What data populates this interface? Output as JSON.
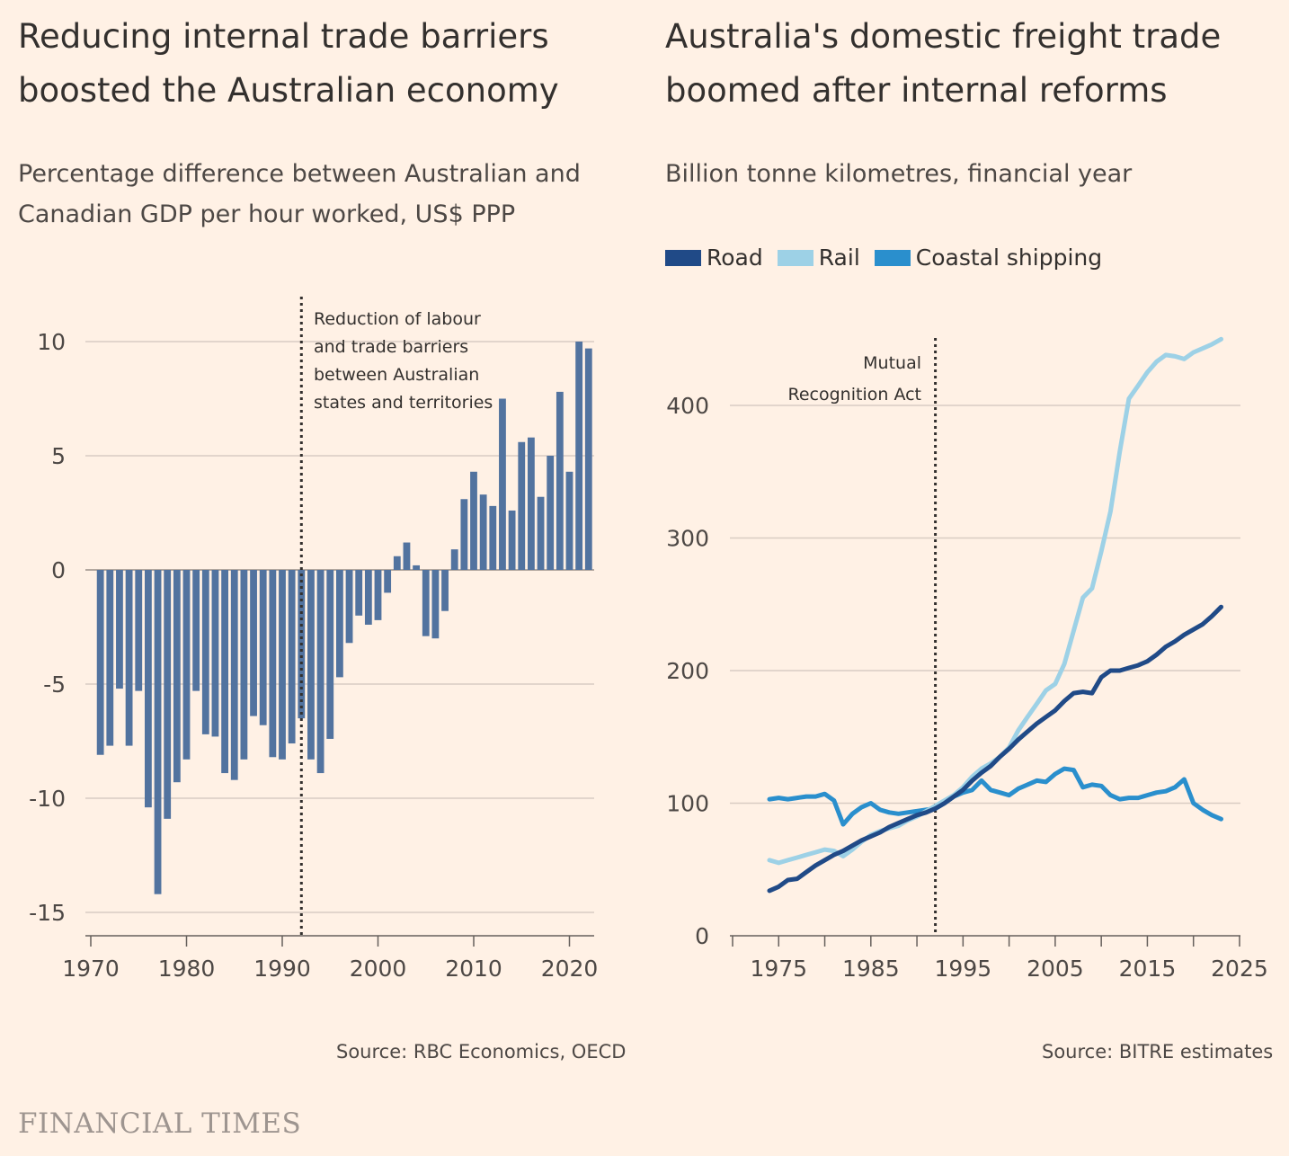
{
  "left": {
    "title_line1": "Reducing internal trade barriers",
    "title_line2": "boosted the Australian economy",
    "subtitle_line1": "Percentage difference between Australian and",
    "subtitle_line2": "Canadian GDP per hour worked, US$ PPP",
    "source": "Source: RBC Economics, OECD",
    "annotation": [
      "Reduction of labour",
      "and trade barriers",
      "between Australian",
      "states and territories"
    ]
  },
  "right": {
    "title_line1": "Australia's domestic freight trade",
    "title_line2": "boomed after internal reforms",
    "subtitle": "Billion tonne kilometres, financial year",
    "source": "Source: BITRE estimates",
    "annotation": [
      "Mutual",
      "Recognition Act"
    ]
  },
  "brand": "FINANCIAL TIMES",
  "colors": {
    "background": "#fff1e5",
    "bar": "#52739f",
    "road": "#204a87",
    "rail": "#9dd1e6",
    "coastal": "#2a8fcd",
    "grid": "#d9ccc3"
  },
  "chart_data": [
    {
      "type": "bar",
      "ylim": [
        -16,
        10
      ],
      "xlim": [
        1970,
        2023
      ],
      "yticks": [
        10,
        5,
        0,
        -5,
        -10,
        -15
      ],
      "yticklabels": [
        "10",
        "5",
        "0",
        "-5",
        "-10",
        "-15"
      ],
      "xticklabels": [
        "1970",
        "1980",
        "1990",
        "2000",
        "2010",
        "2020"
      ],
      "marker": {
        "x": 1992,
        "text": "Reduction of labour and trade barriers between Australian states and territories"
      },
      "categories": [
        1971,
        1972,
        1973,
        1974,
        1975,
        1976,
        1977,
        1978,
        1979,
        1980,
        1981,
        1982,
        1983,
        1984,
        1985,
        1986,
        1987,
        1988,
        1989,
        1990,
        1991,
        1992,
        1993,
        1994,
        1995,
        1996,
        1997,
        1998,
        1999,
        2000,
        2001,
        2002,
        2003,
        2004,
        2005,
        2006,
        2007,
        2008,
        2009,
        2010,
        2011,
        2012,
        2013,
        2014,
        2015,
        2016,
        2017,
        2018,
        2019,
        2020,
        2021,
        2022
      ],
      "values": [
        -8.1,
        -7.7,
        -5.2,
        -7.7,
        -5.3,
        -10.4,
        -14.2,
        -10.9,
        -9.3,
        -8.3,
        -5.3,
        -7.2,
        -7.3,
        -8.9,
        -9.2,
        -8.3,
        -6.4,
        -6.8,
        -8.2,
        -8.3,
        -7.6,
        -6.5,
        -8.3,
        -8.9,
        -7.4,
        -4.7,
        -3.2,
        -2.0,
        -2.4,
        -2.2,
        -1.0,
        0.6,
        1.2,
        0.2,
        -2.9,
        -3.0,
        -1.8,
        0.9,
        3.1,
        4.3,
        3.3,
        2.8,
        7.5,
        2.6,
        5.6,
        5.8,
        3.2,
        5.0,
        7.8,
        4.3,
        10.0,
        9.7
      ]
    },
    {
      "type": "line",
      "ylim": [
        0,
        450
      ],
      "xlim": [
        1970,
        2025
      ],
      "yticks": [
        0,
        100,
        200,
        300,
        400
      ],
      "yticklabels": [
        "0",
        "100",
        "200",
        "300",
        "400"
      ],
      "xticklabels": [
        "1975",
        "1985",
        "1995",
        "2005",
        "2015",
        "2025"
      ],
      "marker": {
        "x": 1992,
        "text": "Mutual Recognition Act"
      },
      "x": [
        1974,
        1975,
        1976,
        1977,
        1978,
        1979,
        1980,
        1981,
        1982,
        1983,
        1984,
        1985,
        1986,
        1987,
        1988,
        1989,
        1990,
        1991,
        1992,
        1993,
        1994,
        1995,
        1996,
        1997,
        1998,
        1999,
        2000,
        2001,
        2002,
        2003,
        2004,
        2005,
        2006,
        2007,
        2008,
        2009,
        2010,
        2011,
        2012,
        2013,
        2014,
        2015,
        2016,
        2017,
        2018,
        2019,
        2020,
        2021,
        2022,
        2023
      ],
      "series": [
        {
          "name": "Road",
          "color": "#204a87",
          "values": [
            34,
            37,
            42,
            43,
            48,
            53,
            57,
            61,
            64,
            68,
            72,
            75,
            78,
            82,
            85,
            88,
            91,
            93,
            96,
            100,
            105,
            110,
            117,
            123,
            128,
            135,
            141,
            148,
            154,
            160,
            165,
            170,
            177,
            183,
            184,
            183,
            195,
            200,
            200,
            202,
            204,
            207,
            212,
            218,
            222,
            227,
            231,
            235,
            241,
            248
          ]
        },
        {
          "name": "Rail",
          "color": "#9dd1e6",
          "values": [
            57,
            55,
            57,
            59,
            61,
            63,
            65,
            64,
            60,
            65,
            71,
            76,
            79,
            81,
            83,
            87,
            90,
            94,
            98,
            102,
            106,
            112,
            120,
            126,
            130,
            135,
            142,
            155,
            165,
            175,
            185,
            190,
            205,
            230,
            255,
            262,
            290,
            320,
            365,
            405,
            415,
            425,
            433,
            438,
            437,
            435,
            440,
            443,
            446,
            450
          ]
        },
        {
          "name": "Coastal shipping",
          "color": "#2a8fcd",
          "values": [
            103,
            104,
            103,
            104,
            105,
            105,
            107,
            102,
            84,
            92,
            97,
            100,
            95,
            93,
            92,
            93,
            94,
            95,
            96,
            100,
            105,
            108,
            110,
            117,
            110,
            108,
            106,
            111,
            114,
            117,
            116,
            122,
            126,
            125,
            112,
            114,
            113,
            106,
            103,
            104,
            104,
            106,
            108,
            109,
            112,
            118,
            100,
            95,
            91,
            88
          ]
        }
      ]
    }
  ]
}
